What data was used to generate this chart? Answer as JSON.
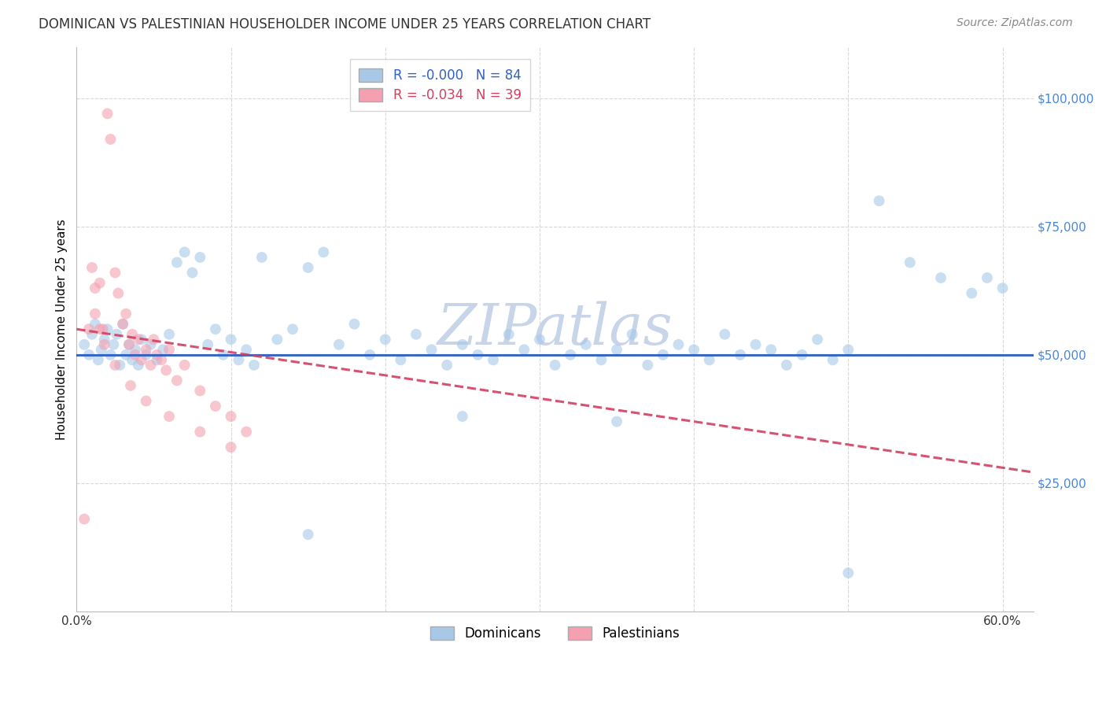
{
  "title": "DOMINICAN VS PALESTINIAN HOUSEHOLDER INCOME UNDER 25 YEARS CORRELATION CHART",
  "source": "Source: ZipAtlas.com",
  "ylabel": "Householder Income Under 25 years",
  "watermark": "ZIPatlas",
  "xlim": [
    0.0,
    0.62
  ],
  "ylim": [
    0,
    110000
  ],
  "yticks": [
    25000,
    50000,
    75000,
    100000
  ],
  "ytick_labels": [
    "$25,000",
    "$50,000",
    "$75,000",
    "$100,000"
  ],
  "xticks": [
    0.0,
    0.1,
    0.2,
    0.3,
    0.4,
    0.5,
    0.6
  ],
  "xtick_labels": [
    "0.0%",
    "",
    "",
    "",
    "",
    "",
    "60.0%"
  ],
  "dominicans_R": "-0.000",
  "dominicans_N": 84,
  "palestinians_R": "-0.034",
  "palestinians_N": 39,
  "blue_color": "#a8c8e8",
  "pink_color": "#f4a0b0",
  "blue_line_color": "#3060c0",
  "pink_line_color": "#d04060",
  "grid_color": "#d8d8d8",
  "ytick_color": "#4488dd",
  "xtick_color": "#333333",
  "background_color": "#ffffff",
  "title_fontsize": 12,
  "source_fontsize": 10,
  "tick_label_fontsize": 11,
  "ylabel_fontsize": 11,
  "legend_fontsize": 12,
  "watermark_fontsize": 52,
  "watermark_color": "#c8d4e8",
  "scatter_size": 100,
  "scatter_alpha": 0.6,
  "line_width": 2.2,
  "dominicans_x": [
    0.005,
    0.008,
    0.01,
    0.012,
    0.014,
    0.016,
    0.018,
    0.02,
    0.022,
    0.024,
    0.026,
    0.028,
    0.03,
    0.032,
    0.034,
    0.036,
    0.038,
    0.04,
    0.042,
    0.045,
    0.048,
    0.052,
    0.056,
    0.06,
    0.065,
    0.07,
    0.075,
    0.08,
    0.085,
    0.09,
    0.095,
    0.1,
    0.105,
    0.11,
    0.115,
    0.12,
    0.13,
    0.14,
    0.15,
    0.16,
    0.17,
    0.18,
    0.19,
    0.2,
    0.21,
    0.22,
    0.23,
    0.24,
    0.25,
    0.26,
    0.27,
    0.28,
    0.29,
    0.3,
    0.31,
    0.32,
    0.33,
    0.34,
    0.35,
    0.36,
    0.37,
    0.38,
    0.39,
    0.4,
    0.41,
    0.42,
    0.43,
    0.44,
    0.45,
    0.46,
    0.47,
    0.48,
    0.49,
    0.5,
    0.52,
    0.54,
    0.56,
    0.58,
    0.59,
    0.6,
    0.15,
    0.25,
    0.35,
    0.5
  ],
  "dominicans_y": [
    52000,
    50000,
    54000,
    56000,
    49000,
    51000,
    53000,
    55000,
    50000,
    52000,
    54000,
    48000,
    56000,
    50000,
    52000,
    49000,
    51000,
    48000,
    53000,
    50000,
    52000,
    49000,
    51000,
    54000,
    68000,
    70000,
    66000,
    69000,
    52000,
    55000,
    50000,
    53000,
    49000,
    51000,
    48000,
    69000,
    53000,
    55000,
    67000,
    70000,
    52000,
    56000,
    50000,
    53000,
    49000,
    54000,
    51000,
    48000,
    52000,
    50000,
    49000,
    54000,
    51000,
    53000,
    48000,
    50000,
    52000,
    49000,
    51000,
    54000,
    48000,
    50000,
    52000,
    51000,
    49000,
    54000,
    50000,
    52000,
    51000,
    48000,
    50000,
    53000,
    49000,
    7500,
    80000,
    68000,
    65000,
    62000,
    65000,
    63000,
    15000,
    38000,
    37000,
    51000
  ],
  "palestinians_x": [
    0.005,
    0.008,
    0.01,
    0.012,
    0.015,
    0.017,
    0.02,
    0.022,
    0.025,
    0.027,
    0.03,
    0.032,
    0.034,
    0.036,
    0.038,
    0.04,
    0.042,
    0.045,
    0.048,
    0.05,
    0.052,
    0.055,
    0.058,
    0.06,
    0.065,
    0.07,
    0.08,
    0.09,
    0.1,
    0.11,
    0.012,
    0.015,
    0.018,
    0.025,
    0.035,
    0.045,
    0.06,
    0.08,
    0.1
  ],
  "palestinians_y": [
    18000,
    55000,
    67000,
    63000,
    64000,
    55000,
    97000,
    92000,
    66000,
    62000,
    56000,
    58000,
    52000,
    54000,
    50000,
    53000,
    49000,
    51000,
    48000,
    53000,
    50000,
    49000,
    47000,
    51000,
    45000,
    48000,
    43000,
    40000,
    38000,
    35000,
    58000,
    55000,
    52000,
    48000,
    44000,
    41000,
    38000,
    35000,
    32000
  ]
}
